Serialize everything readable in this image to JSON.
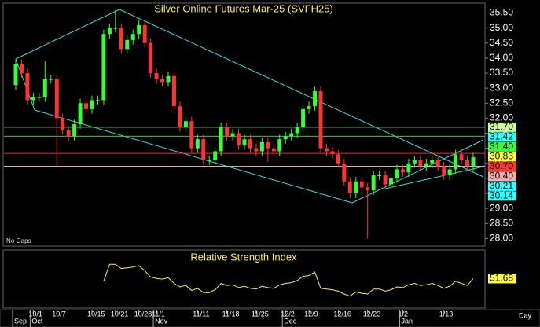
{
  "chart_data": {
    "type": "candlestick",
    "title": "Silver Online Futures Mar-25 (SVFH25)",
    "note": "No Gaps",
    "x_unit": "Day",
    "up_color": "#33ff33",
    "down_color": "#ff3333",
    "ylim": [
      27.75,
      35.8
    ],
    "yticks": [
      {
        "value": 35.5,
        "label": "35.50"
      },
      {
        "value": 35,
        "label": "35.00"
      },
      {
        "value": 34.5,
        "label": "34.50"
      },
      {
        "value": 34,
        "label": "34.00"
      },
      {
        "value": 33.5,
        "label": "33.50"
      },
      {
        "value": 33,
        "label": "33.00"
      },
      {
        "value": 32.5,
        "label": "32.50"
      },
      {
        "value": 32,
        "label": "32.00"
      },
      {
        "value": 31.5,
        "label": "31.50"
      },
      {
        "value": 31,
        "label": "31.00"
      },
      {
        "value": 30.5,
        "label": "30.50"
      },
      {
        "value": 30,
        "label": "30.00"
      },
      {
        "value": 29.5,
        "label": "29.50"
      },
      {
        "value": 29,
        "label": "29.00"
      },
      {
        "value": 28.5,
        "label": "28.50"
      },
      {
        "value": 28,
        "label": "28.00"
      }
    ],
    "categories": [
      null,
      null,
      null,
      "10/1",
      null,
      null,
      null,
      "10/7",
      null,
      null,
      null,
      null,
      null,
      "10/15",
      null,
      null,
      null,
      "10/21",
      null,
      null,
      null,
      "10/28",
      null,
      null,
      "11/1",
      null,
      null,
      null,
      null,
      null,
      null,
      "11/11",
      null,
      null,
      null,
      null,
      "11/18",
      null,
      null,
      null,
      null,
      "11/25",
      null,
      null,
      null,
      null,
      "12/2",
      null,
      null,
      null,
      "12/9",
      null,
      null,
      null,
      null,
      "12/16",
      null,
      null,
      null,
      null,
      "12/23",
      null,
      null,
      null,
      null,
      null,
      "1/2",
      null,
      null,
      null,
      null,
      null,
      null,
      "1/13",
      null,
      null,
      null,
      null,
      null
    ],
    "months": [
      "Sep",
      null,
      null,
      "Oct",
      null,
      null,
      null,
      null,
      null,
      null,
      null,
      null,
      null,
      null,
      null,
      null,
      null,
      null,
      null,
      null,
      null,
      null,
      null,
      null,
      "Nov",
      null,
      null,
      null,
      null,
      null,
      null,
      null,
      null,
      null,
      null,
      null,
      null,
      null,
      null,
      null,
      null,
      null,
      null,
      null,
      null,
      null,
      "Dec",
      null,
      null,
      null,
      null,
      null,
      null,
      null,
      null,
      null,
      null,
      null,
      null,
      null,
      null,
      null,
      null,
      null,
      null,
      null,
      "Jan",
      null,
      null,
      null,
      null,
      null,
      null,
      null,
      null,
      null,
      null,
      null,
      null
    ],
    "open": [
      33.1,
      33.8,
      33.5,
      32.6,
      32.7,
      32.7,
      33.3,
      33.3,
      32.0,
      31.6,
      31.4,
      31.8,
      32.5,
      32.3,
      32.6,
      32.6,
      34.8,
      35.0,
      35.0,
      34.3,
      34.6,
      34.8,
      35.1,
      34.5,
      33.5,
      33.3,
      33.2,
      33.4,
      32.4,
      31.7,
      31.9,
      31.0,
      31.3,
      30.6,
      30.6,
      30.9,
      31.7,
      31.4,
      31.5,
      31.1,
      31.3,
      31.0,
      30.9,
      31.2,
      31.0,
      30.9,
      31.3,
      31.4,
      31.5,
      31.7,
      32.3,
      32.4,
      32.9,
      31.0,
      30.9,
      30.8,
      30.5,
      29.9,
      29.5,
      29.9,
      29.7,
      29.6,
      30.1,
      30.1,
      29.8,
      30.0,
      30.3,
      30.2,
      30.5,
      30.6,
      30.4,
      30.5,
      30.6,
      30.4,
      30.1,
      30.3,
      30.8,
      30.6,
      30.4
    ],
    "high": [
      33.95,
      33.95,
      33.65,
      32.85,
      32.85,
      33.9,
      33.45,
      33.45,
      32.15,
      31.75,
      31.95,
      32.65,
      32.65,
      32.75,
      32.75,
      34.95,
      35.15,
      35.6,
      35.15,
      34.75,
      34.95,
      35.25,
      35.25,
      34.65,
      33.65,
      33.45,
      33.55,
      33.55,
      32.55,
      32.05,
      32.05,
      31.45,
      31.45,
      30.75,
      31.05,
      31.85,
      31.85,
      31.65,
      31.65,
      31.45,
      31.45,
      31.15,
      31.35,
      31.35,
      31.15,
      31.45,
      31.55,
      31.65,
      31.85,
      32.45,
      32.55,
      33.05,
      33.05,
      31.15,
      31.05,
      30.95,
      30.65,
      30.05,
      30.05,
      30.05,
      29.85,
      30.25,
      30.25,
      30.25,
      30.15,
      30.45,
      30.45,
      30.65,
      30.75,
      30.75,
      30.65,
      30.75,
      30.75,
      30.55,
      30.45,
      30.95,
      30.95,
      30.75,
      30.85
    ],
    "low": [
      32.95,
      33.35,
      32.45,
      32.45,
      32.55,
      32.55,
      33.15,
      30.4,
      31.45,
      31.25,
      31.25,
      31.65,
      32.15,
      32.15,
      32.45,
      32.45,
      34.65,
      34.85,
      34.15,
      34.15,
      34.45,
      34.65,
      34.35,
      33.35,
      33.15,
      33.05,
      33.05,
      32.25,
      31.55,
      31.55,
      30.85,
      30.85,
      30.45,
      30.45,
      30.45,
      30.75,
      31.25,
      31.25,
      30.95,
      30.95,
      30.85,
      30.75,
      30.75,
      30.55,
      30.75,
      30.75,
      31.15,
      31.25,
      31.35,
      31.55,
      32.15,
      32.25,
      30.85,
      30.75,
      30.65,
      30.35,
      29.75,
      29.35,
      29.35,
      29.55,
      28.0,
      29.45,
      29.95,
      29.65,
      29.65,
      29.85,
      30.05,
      30.05,
      30.35,
      30.25,
      30.25,
      30.35,
      30.25,
      29.95,
      29.95,
      30.15,
      30.45,
      30.25,
      30.25
    ],
    "close": [
      33.8,
      33.5,
      32.6,
      32.7,
      32.7,
      33.3,
      33.3,
      32.0,
      31.6,
      31.4,
      31.8,
      32.5,
      32.3,
      32.6,
      32.6,
      34.8,
      35.0,
      35.0,
      34.3,
      34.6,
      34.8,
      35.1,
      34.5,
      33.5,
      33.3,
      33.2,
      33.4,
      32.4,
      31.7,
      31.9,
      31.0,
      31.3,
      30.6,
      30.6,
      30.9,
      31.7,
      31.4,
      31.5,
      31.1,
      31.3,
      31.0,
      30.9,
      31.2,
      31.0,
      30.9,
      31.3,
      31.4,
      31.5,
      31.7,
      32.3,
      32.4,
      32.9,
      31.0,
      30.9,
      30.8,
      30.5,
      29.9,
      29.5,
      29.9,
      29.7,
      29.6,
      30.1,
      30.1,
      29.8,
      30.0,
      30.3,
      30.2,
      30.5,
      30.6,
      30.4,
      30.5,
      30.6,
      30.4,
      30.1,
      30.3,
      30.8,
      30.6,
      30.4,
      30.7
    ],
    "levels": [
      {
        "value": 31.7,
        "label": "31.70",
        "color": "#ccff99",
        "line_color": "#66dd33"
      },
      {
        "value": 31.42,
        "label": "31.42",
        "color": "#33ffff"
      },
      {
        "value": 31.4,
        "label": "31.40",
        "color": "#33ff33",
        "line_color": "#33cc33"
      },
      {
        "value": 30.83,
        "label": "30.83",
        "color": "#ffff33",
        "line_color": "#dd3333"
      },
      {
        "value": 30.7,
        "label": "30.70",
        "color": "#ff3333"
      },
      {
        "value": 30.4,
        "label": "30.40",
        "color": "#ffaaaa",
        "line_color": "#ffcc99"
      },
      {
        "value": 30.21,
        "label": "30.21",
        "color": "#33ffff"
      },
      {
        "value": 30.14,
        "label": "30.14",
        "color": "#33ffff"
      }
    ],
    "rsi": {
      "title": "Relative Strength Index",
      "color": "#ffee44",
      "ylim": [
        10,
        90
      ],
      "values": [
        null,
        null,
        null,
        null,
        null,
        null,
        null,
        null,
        null,
        null,
        null,
        null,
        null,
        null,
        null,
        48,
        72,
        72,
        66,
        67,
        68,
        70,
        63,
        54,
        52,
        51,
        53,
        45,
        40,
        42,
        35,
        38,
        32,
        32,
        36,
        45,
        42,
        43,
        39,
        41,
        38,
        37,
        41,
        39,
        38,
        43,
        45,
        46,
        49,
        55,
        56,
        61,
        38,
        37,
        36,
        34,
        30,
        27,
        33,
        31,
        30,
        37,
        37,
        34,
        36,
        40,
        39,
        43,
        45,
        42,
        43,
        45,
        42,
        38,
        41,
        48,
        45,
        42,
        51.68
      ]
    }
  }
}
